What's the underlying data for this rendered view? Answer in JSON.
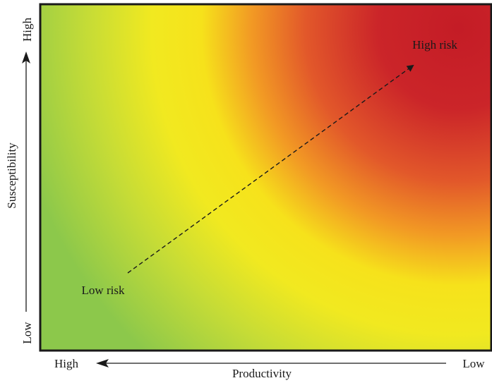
{
  "diagram": {
    "y_axis": {
      "title": "Susceptibility",
      "low_label": "Low",
      "high_label": "High"
    },
    "x_axis": {
      "title": "Productivity",
      "high_label": "High",
      "low_label": "Low"
    },
    "annotations": {
      "low_risk": "Low risk",
      "high_risk": "High risk"
    },
    "colors": {
      "low_risk": "#8bc34a",
      "medium_risk": "#f5e61a",
      "high_risk": "#c8202a",
      "border": "#1a1a1a"
    }
  }
}
